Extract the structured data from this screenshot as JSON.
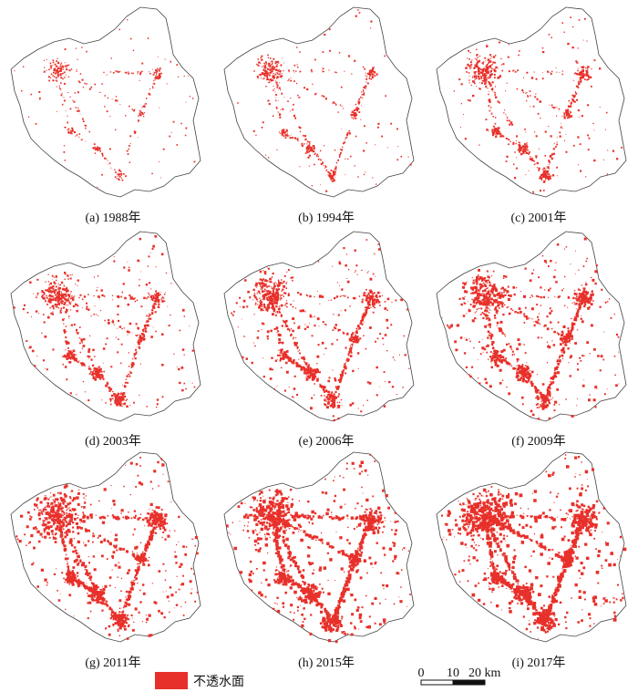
{
  "panels": [
    {
      "caption": "(a) 1988年"
    },
    {
      "caption": "(b) 1994年"
    },
    {
      "caption": "(c) 2001年"
    },
    {
      "caption": "(d) 2003年"
    },
    {
      "caption": "(e) 2006年"
    },
    {
      "caption": "(f) 2009年"
    },
    {
      "caption": "(g) 2011年"
    },
    {
      "caption": "(h) 2015年"
    },
    {
      "caption": "(i) 2017年"
    }
  ],
  "legend": {
    "label": "不透水面"
  },
  "scale_bar": {
    "ticks": [
      "0",
      "10",
      "20 km"
    ]
  }
}
